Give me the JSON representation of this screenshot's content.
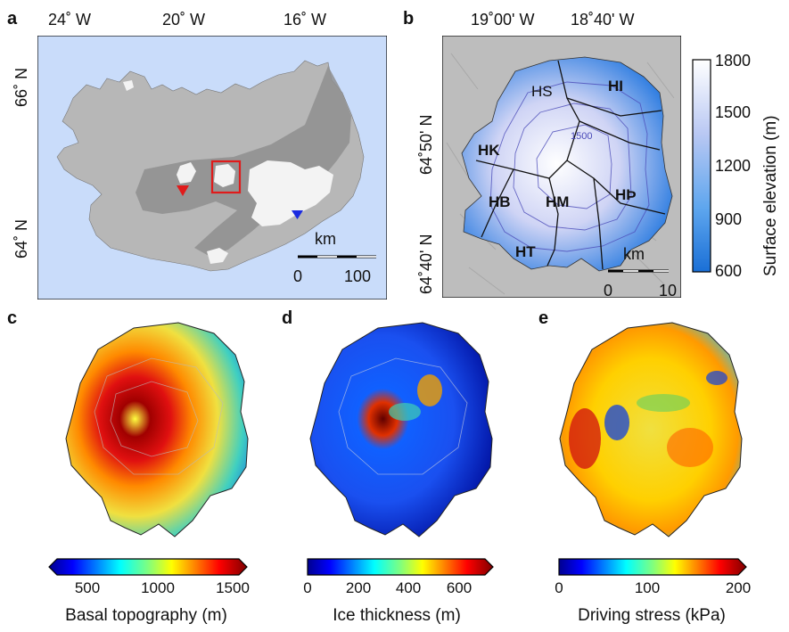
{
  "panels": {
    "a": {
      "label": "a",
      "lon_ticks": [
        "24˚ W",
        "20˚ W",
        "16˚ W"
      ],
      "lat_ticks": [
        "66˚ N",
        "64˚ N"
      ],
      "scale_unit": "km",
      "scale_ticks": [
        "0",
        "100"
      ],
      "colors": {
        "sea": "#c9dcfa",
        "land": "#b7b7b7",
        "zone": "#8f8f8f",
        "ice": "#f3f3f3",
        "inset_box": "#e01b1b",
        "marker_red": "#e01b1b",
        "marker_blue": "#1b2be0"
      }
    },
    "b": {
      "label": "b",
      "lon_ticks": [
        "19˚00' W",
        "18˚40' W"
      ],
      "lat_ticks": [
        "64˚50' N",
        "64˚40' N"
      ],
      "region_labels": [
        "HS",
        "HI",
        "HK",
        "HB",
        "HM",
        "HÞ",
        "HT"
      ],
      "contour_label": "1500",
      "scale_unit": "km",
      "scale_ticks": [
        "0",
        "10"
      ],
      "colorbar": {
        "title": "Surface elevation (m)",
        "ticks": [
          "1800",
          "1500",
          "1200",
          "900",
          "600"
        ],
        "min": 600,
        "max": 1800,
        "colors": [
          "#1a6fd6",
          "#5ea6ee",
          "#b9c8f3",
          "#ffffff"
        ]
      }
    },
    "c": {
      "label": "c",
      "colorbar": {
        "title": "Basal topography (m)",
        "ticks": [
          "500",
          "1000",
          "1500"
        ],
        "min": 250,
        "max": 1500,
        "colormap": "jet"
      }
    },
    "d": {
      "label": "d",
      "colorbar": {
        "title": "Ice thickness (m)",
        "ticks": [
          "0",
          "200",
          "400",
          "600"
        ],
        "min": 0,
        "max": 700,
        "colormap": "jet"
      }
    },
    "e": {
      "label": "e",
      "colorbar": {
        "title": "Driving stress (kPa)",
        "ticks": [
          "0",
          "100",
          "200"
        ],
        "min": 0,
        "max": 200,
        "colormap": "jet"
      }
    }
  }
}
